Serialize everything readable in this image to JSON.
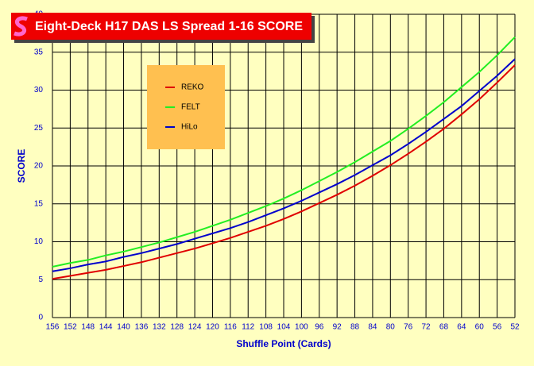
{
  "chart_data": {
    "type": "line",
    "title": "Eight-Deck H17 DAS LS Spread 1-16 SCORE",
    "x_label": "Shuffle Point (Cards)",
    "y_label": "SCORE",
    "x": [
      156,
      152,
      148,
      144,
      140,
      136,
      132,
      128,
      124,
      120,
      116,
      112,
      108,
      104,
      100,
      96,
      92,
      88,
      84,
      80,
      76,
      72,
      68,
      64,
      60,
      56,
      52
    ],
    "xlim": [
      156,
      52
    ],
    "xticks": [
      156,
      152,
      148,
      144,
      140,
      136,
      132,
      128,
      124,
      120,
      116,
      112,
      108,
      104,
      100,
      96,
      92,
      88,
      84,
      80,
      76,
      72,
      68,
      64,
      60,
      56,
      52
    ],
    "ylim": [
      0,
      40
    ],
    "yticks": [
      0,
      5,
      10,
      15,
      20,
      25,
      30,
      35,
      40
    ],
    "grid": true,
    "legend": "upper-left",
    "series": [
      {
        "name": "REKO",
        "color": "#e00000",
        "values": [
          5.1,
          5.5,
          5.9,
          6.3,
          6.8,
          7.3,
          7.9,
          8.5,
          9.1,
          9.8,
          10.5,
          11.3,
          12.1,
          13.0,
          14.0,
          15.1,
          16.2,
          17.4,
          18.7,
          20.1,
          21.6,
          23.2,
          24.9,
          26.8,
          28.8,
          31.0,
          33.3
        ]
      },
      {
        "name": "FELT",
        "color": "#22ee22",
        "values": [
          6.7,
          7.2,
          7.6,
          8.2,
          8.7,
          9.3,
          9.9,
          10.6,
          11.3,
          12.1,
          12.9,
          13.8,
          14.7,
          15.7,
          16.8,
          18.0,
          19.2,
          20.5,
          21.9,
          23.3,
          24.9,
          26.6,
          28.4,
          30.4,
          32.4,
          34.6,
          37.0
        ]
      },
      {
        "name": "HiLo",
        "color": "#0000cc",
        "values": [
          6.1,
          6.5,
          7.0,
          7.4,
          8.0,
          8.5,
          9.1,
          9.7,
          10.4,
          11.1,
          11.8,
          12.6,
          13.5,
          14.4,
          15.4,
          16.5,
          17.6,
          18.8,
          20.1,
          21.4,
          22.9,
          24.5,
          26.2,
          27.9,
          29.9,
          31.9,
          34.1
        ]
      }
    ]
  }
}
